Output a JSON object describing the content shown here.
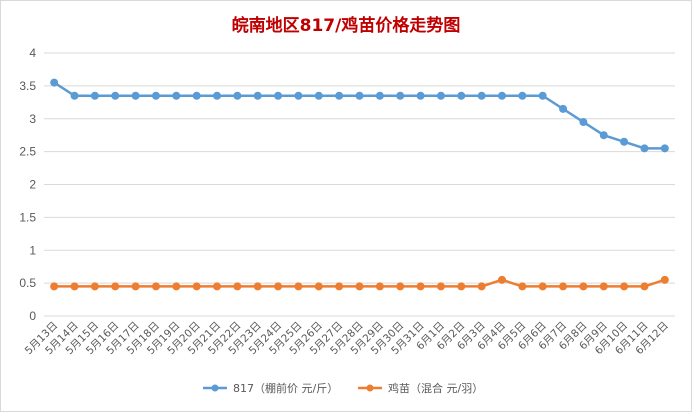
{
  "chart_data": {
    "type": "line",
    "title": "皖南地区817/鸡苗价格走势图",
    "title_color": "#C00000",
    "categories": [
      "5月13日",
      "5月14日",
      "5月15日",
      "5月16日",
      "5月17日",
      "5月18日",
      "5月19日",
      "5月20日",
      "5月21日",
      "5月22日",
      "5月23日",
      "5月24日",
      "5月25日",
      "5月26日",
      "5月27日",
      "5月28日",
      "5月29日",
      "5月30日",
      "5月31日",
      "6月1日",
      "6月2日",
      "6月3日",
      "6月4日",
      "6月5日",
      "6月6日",
      "6月7日",
      "6月8日",
      "6月9日",
      "6月10日",
      "6月11日",
      "6月12日"
    ],
    "ylim": [
      0,
      4
    ],
    "yticks": [
      "0",
      "0.5",
      "1",
      "1.5",
      "2",
      "2.5",
      "3",
      "3.5",
      "4"
    ],
    "ytick_values": [
      0,
      0.5,
      1,
      1.5,
      2,
      2.5,
      3,
      3.5,
      4
    ],
    "grid": true,
    "legend_position": "bottom",
    "series": [
      {
        "name": "817（棚前价 元/斤）",
        "color": "#5B9BD5",
        "values": [
          3.55,
          3.35,
          3.35,
          3.35,
          3.35,
          3.35,
          3.35,
          3.35,
          3.35,
          3.35,
          3.35,
          3.35,
          3.35,
          3.35,
          3.35,
          3.35,
          3.35,
          3.35,
          3.35,
          3.35,
          3.35,
          3.35,
          3.35,
          3.35,
          3.35,
          3.15,
          2.95,
          2.75,
          2.65,
          2.55,
          2.55
        ]
      },
      {
        "name": "鸡苗（混合 元/羽）",
        "color": "#ED7D31",
        "values": [
          0.45,
          0.45,
          0.45,
          0.45,
          0.45,
          0.45,
          0.45,
          0.45,
          0.45,
          0.45,
          0.45,
          0.45,
          0.45,
          0.45,
          0.45,
          0.45,
          0.45,
          0.45,
          0.45,
          0.45,
          0.45,
          0.45,
          0.55,
          0.45,
          0.45,
          0.45,
          0.45,
          0.45,
          0.45,
          0.45,
          0.55
        ]
      }
    ]
  }
}
